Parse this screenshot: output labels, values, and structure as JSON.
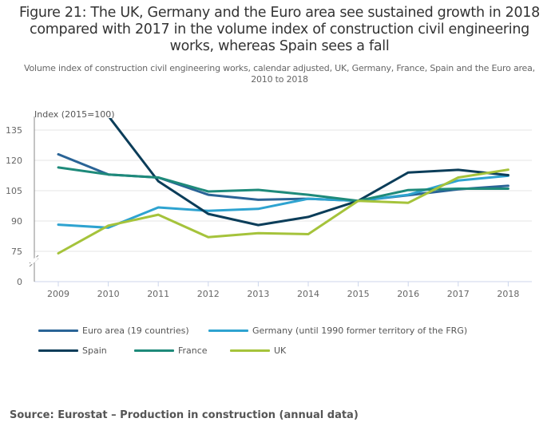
{
  "chart_data": {
    "type": "line",
    "title": "Figure 21: The UK, Germany and the Euro area see sustained growth in 2018 compared with 2017 in the volume index of construction civil engineering works, whereas Spain sees a fall",
    "subtitle": "Volume index of construction civil engineering works, calendar adjusted, UK, Germany, France, Spain and the Euro area, 2010 to 2018",
    "xlabel": "",
    "ylabel": "Index (2015=100)",
    "x": [
      "2009",
      "2010",
      "2011",
      "2012",
      "2013",
      "2014",
      "2015",
      "2016",
      "2017",
      "2018"
    ],
    "yticks": [
      "0",
      "75",
      "90",
      "105",
      "120",
      "135"
    ],
    "ylim": [
      75,
      140
    ],
    "axis_break": true,
    "grid": true,
    "legend_position": "bottom",
    "series": [
      {
        "name": "Euro area (19 countries)",
        "color": "#2a6496",
        "values": [
          123,
          113,
          111.5,
          103,
          100.5,
          101,
          100,
          102.7,
          105.7,
          107.4
        ]
      },
      {
        "name": "Germany (until 1990 former territory of the FRG)",
        "color": "#2ea3d0",
        "values": [
          88.2,
          86.7,
          96.7,
          95,
          96,
          101,
          100,
          103,
          110,
          112.4
        ]
      },
      {
        "name": "Spain",
        "color": "#0b3d59",
        "values": [
          null,
          142,
          109.7,
          93.5,
          88,
          92,
          100,
          114,
          115.3,
          112.7
        ]
      },
      {
        "name": "France",
        "color": "#1e8a7a",
        "values": [
          116.5,
          113,
          111.5,
          104.6,
          105.4,
          103,
          100,
          105.3,
          106,
          106
        ]
      },
      {
        "name": "UK",
        "color": "#a5c33b",
        "values": [
          74,
          87.7,
          93.1,
          82,
          84,
          83.5,
          100,
          99,
          111.5,
          115.4
        ]
      }
    ]
  },
  "source": "Source: Eurostat – Production in construction (annual data)"
}
